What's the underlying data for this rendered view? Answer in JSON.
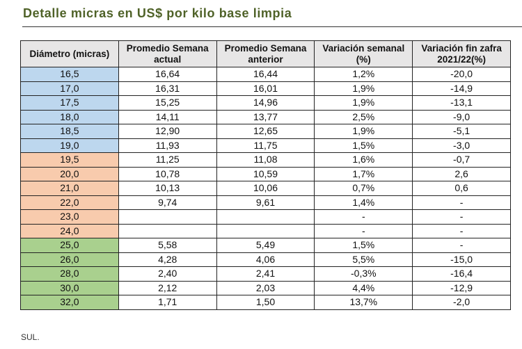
{
  "title": "Detalle micras en US$ por kilo base limpia",
  "colors": {
    "blue": "#bdd7ee",
    "orange": "#f8cbad",
    "green": "#a9d08e",
    "title": "#4f6228"
  },
  "table": {
    "headers": [
      "Diámetro (micras)",
      "Promedio Semana actual",
      "Promedio Semana anterior",
      "Variación semanal (%)",
      "Variación fin zafra 2021/22(%)"
    ],
    "rows": [
      {
        "group": "blue",
        "cells": [
          "16,5",
          "16,64",
          "16,44",
          "1,2%",
          "-20,0"
        ]
      },
      {
        "group": "blue",
        "cells": [
          "17,0",
          "16,31",
          "16,01",
          "1,9%",
          "-14,9"
        ]
      },
      {
        "group": "blue",
        "cells": [
          "17,5",
          "15,25",
          "14,96",
          "1,9%",
          "-13,1"
        ]
      },
      {
        "group": "blue",
        "cells": [
          "18,0",
          "14,11",
          "13,77",
          "2,5%",
          "-9,0"
        ]
      },
      {
        "group": "blue",
        "cells": [
          "18,5",
          "12,90",
          "12,65",
          "1,9%",
          "-5,1"
        ]
      },
      {
        "group": "blue",
        "cells": [
          "19,0",
          "11,93",
          "11,75",
          "1,5%",
          "-3,0"
        ]
      },
      {
        "group": "orange",
        "cells": [
          "19,5",
          "11,25",
          "11,08",
          "1,6%",
          "-0,7"
        ]
      },
      {
        "group": "orange",
        "cells": [
          "20,0",
          "10,78",
          "10,59",
          "1,7%",
          "2,6"
        ]
      },
      {
        "group": "orange",
        "cells": [
          "21,0",
          "10,13",
          "10,06",
          "0,7%",
          "0,6"
        ]
      },
      {
        "group": "orange",
        "cells": [
          "22,0",
          "9,74",
          "9,61",
          "1,4%",
          "-"
        ]
      },
      {
        "group": "orange",
        "cells": [
          "23,0",
          "",
          "",
          "-",
          "-"
        ]
      },
      {
        "group": "orange",
        "cells": [
          "24,0",
          "",
          "",
          "-",
          "-"
        ]
      },
      {
        "group": "green",
        "cells": [
          "25,0",
          "5,58",
          "5,49",
          "1,5%",
          "-"
        ]
      },
      {
        "group": "green",
        "cells": [
          "26,0",
          "4,28",
          "4,06",
          "5,5%",
          "-15,0"
        ]
      },
      {
        "group": "green",
        "cells": [
          "28,0",
          "2,40",
          "2,41",
          "-0,3%",
          "-16,4"
        ]
      },
      {
        "group": "green",
        "cells": [
          "30,0",
          "2,12",
          "2,03",
          "4,4%",
          "-12,9"
        ]
      },
      {
        "group": "green",
        "cells": [
          "32,0",
          "1,71",
          "1,50",
          "13,7%",
          "-2,0"
        ]
      }
    ]
  },
  "source": "SUL."
}
